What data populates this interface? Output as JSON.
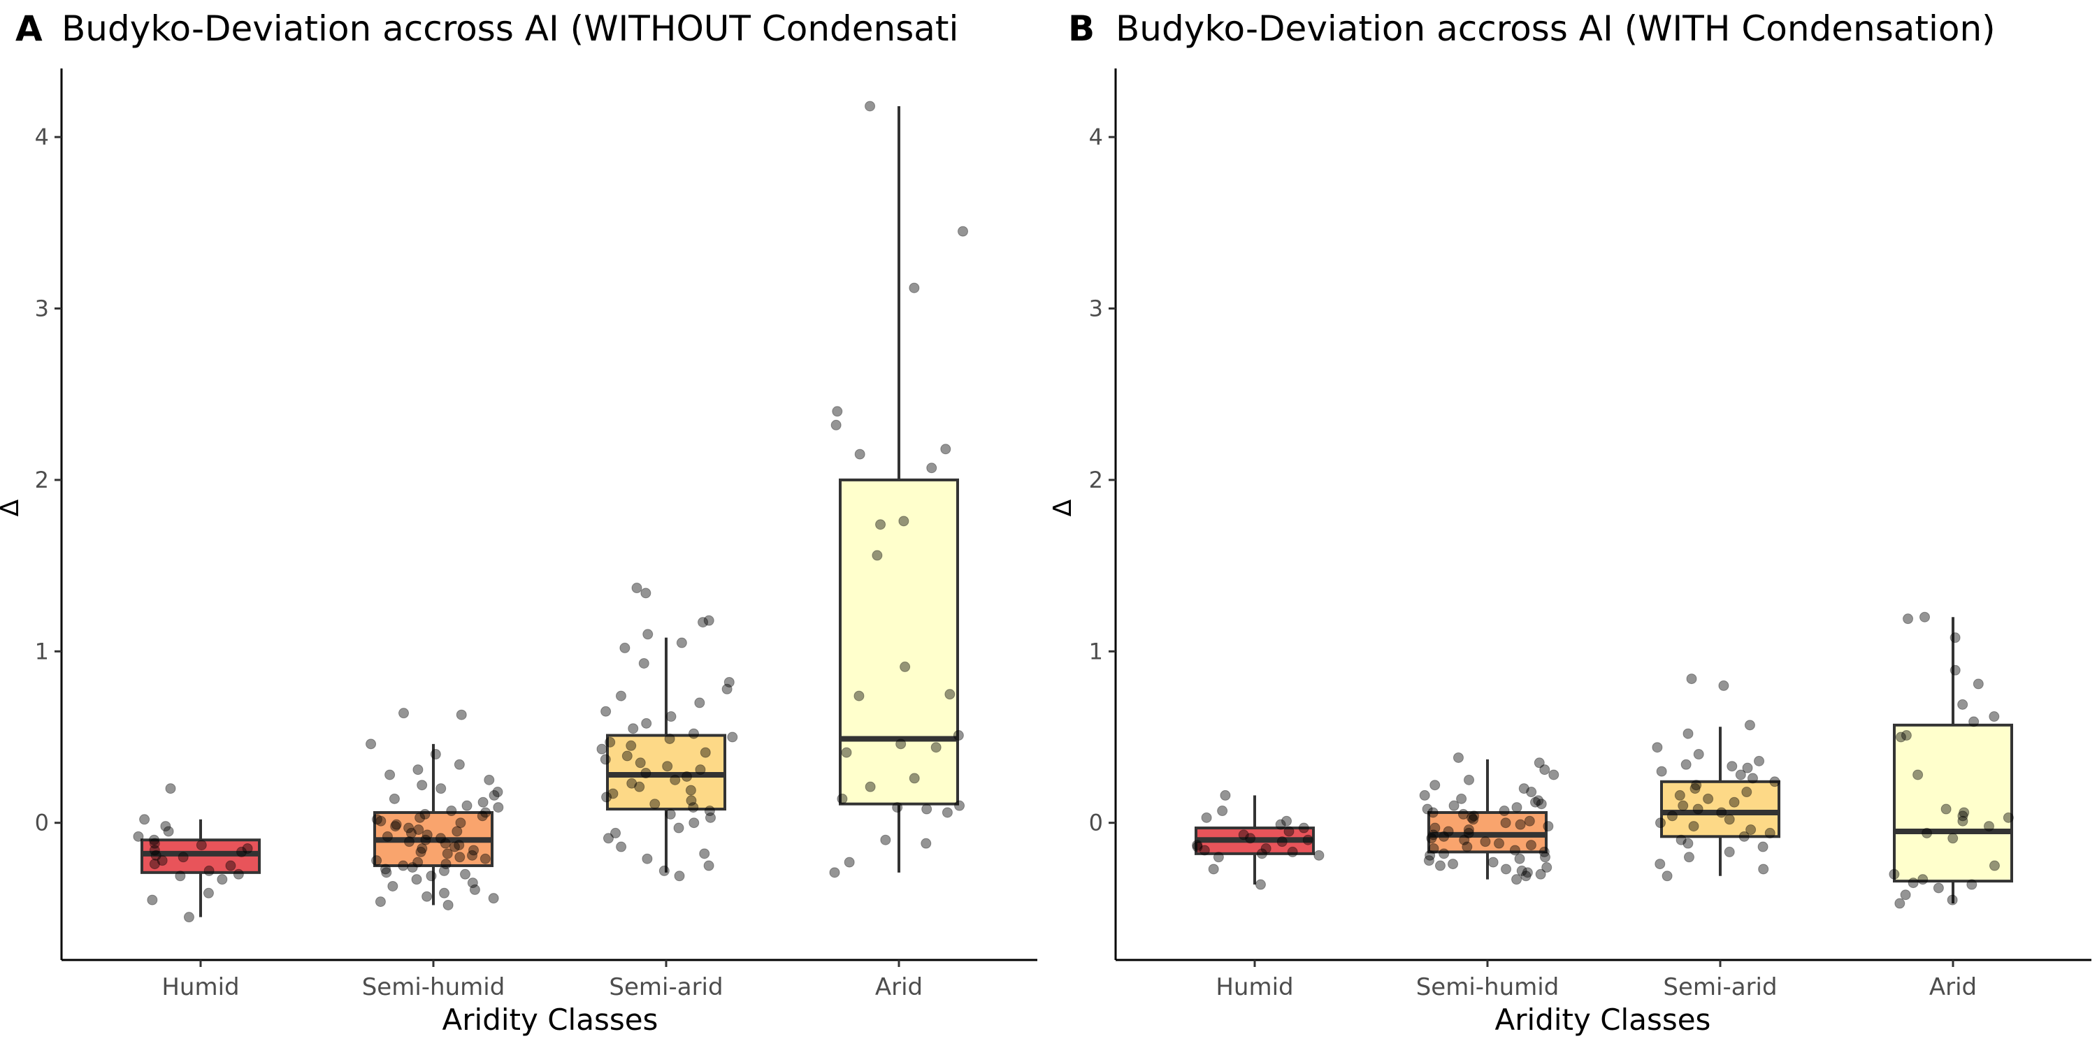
{
  "chart_data": [
    {
      "panel_letter": "A",
      "type": "boxplot",
      "title": "Budyko-Deviation accross AI (WITHOUT Condensati",
      "xlabel": "Aridity Classes",
      "ylabel": "Δ",
      "ylim": [
        -0.8,
        4.4
      ],
      "yticks": [
        0,
        1,
        2,
        3,
        4
      ],
      "grid": false,
      "categories": [
        "Humid",
        "Semi-humid",
        "Semi-arid",
        "Arid"
      ],
      "fill_colors": [
        "#e8545a",
        "#f9a46d",
        "#fdd987",
        "#ffffcc"
      ],
      "boxes": [
        {
          "category": "Humid",
          "whisker_low": -0.55,
          "q1": -0.29,
          "median": -0.18,
          "q3": -0.1,
          "whisker_high": 0.02
        },
        {
          "category": "Semi-humid",
          "whisker_low": -0.48,
          "q1": -0.25,
          "median": -0.1,
          "q3": 0.06,
          "whisker_high": 0.46
        },
        {
          "category": "Semi-arid",
          "whisker_low": -0.29,
          "q1": 0.08,
          "median": 0.28,
          "q3": 0.51,
          "whisker_high": 1.08
        },
        {
          "category": "Arid",
          "whisker_low": -0.29,
          "q1": 0.11,
          "median": 0.49,
          "q3": 2.0,
          "whisker_high": 4.18
        }
      ],
      "points": [
        {
          "category": "Humid",
          "values": [
            0.2,
            0.02,
            -0.02,
            -0.05,
            -0.08,
            -0.1,
            -0.12,
            -0.13,
            -0.15,
            -0.16,
            -0.17,
            -0.19,
            -0.2,
            -0.22,
            -0.24,
            -0.25,
            -0.28,
            -0.3,
            -0.31,
            -0.33,
            -0.41,
            -0.45,
            -0.55
          ]
        },
        {
          "category": "Semi-humid",
          "values": [
            0.64,
            0.63,
            0.46,
            0.4,
            0.34,
            0.31,
            0.28,
            0.25,
            0.22,
            0.2,
            0.18,
            0.16,
            0.14,
            0.12,
            0.1,
            0.09,
            0.07,
            0.06,
            0.05,
            0.04,
            0.03,
            0.02,
            0.01,
            0.0,
            -0.01,
            -0.02,
            -0.03,
            -0.04,
            -0.05,
            -0.06,
            -0.07,
            -0.08,
            -0.09,
            -0.1,
            -0.11,
            -0.12,
            -0.13,
            -0.14,
            -0.15,
            -0.16,
            -0.17,
            -0.18,
            -0.19,
            -0.2,
            -0.21,
            -0.22,
            -0.23,
            -0.24,
            -0.25,
            -0.26,
            -0.27,
            -0.28,
            -0.29,
            -0.3,
            -0.31,
            -0.33,
            -0.35,
            -0.37,
            -0.39,
            -0.41,
            -0.43,
            -0.44,
            -0.46,
            -0.48
          ]
        },
        {
          "category": "Semi-arid",
          "values": [
            1.37,
            1.34,
            1.18,
            1.17,
            1.1,
            1.05,
            1.02,
            0.93,
            0.82,
            0.78,
            0.74,
            0.7,
            0.65,
            0.62,
            0.58,
            0.55,
            0.52,
            0.5,
            0.49,
            0.47,
            0.45,
            0.43,
            0.41,
            0.39,
            0.37,
            0.35,
            0.33,
            0.31,
            0.29,
            0.27,
            0.25,
            0.23,
            0.21,
            0.19,
            0.17,
            0.15,
            0.13,
            0.11,
            0.09,
            0.07,
            0.05,
            0.03,
            0.0,
            -0.03,
            -0.06,
            -0.09,
            -0.14,
            -0.18,
            -0.21,
            -0.25,
            -0.28,
            -0.31
          ]
        },
        {
          "category": "Arid",
          "values": [
            4.18,
            3.45,
            3.12,
            2.4,
            2.32,
            2.18,
            2.15,
            2.07,
            1.76,
            1.74,
            1.56,
            0.91,
            0.75,
            0.74,
            0.51,
            0.46,
            0.44,
            0.41,
            0.26,
            0.21,
            0.14,
            0.1,
            0.09,
            0.08,
            0.06,
            -0.1,
            -0.12,
            -0.23,
            -0.29
          ]
        }
      ]
    },
    {
      "panel_letter": "B",
      "type": "boxplot",
      "title": "Budyko-Deviation accross AI (WITH Condensation)",
      "xlabel": "Aridity Classes",
      "ylabel": "Δ",
      "ylim": [
        -0.8,
        4.4
      ],
      "yticks": [
        0,
        1,
        2,
        3,
        4
      ],
      "grid": false,
      "categories": [
        "Humid",
        "Semi-humid",
        "Semi-arid",
        "Arid"
      ],
      "fill_colors": [
        "#e8545a",
        "#f9a46d",
        "#fdd987",
        "#ffffcc"
      ],
      "boxes": [
        {
          "category": "Humid",
          "whisker_low": -0.36,
          "q1": -0.18,
          "median": -0.1,
          "q3": -0.03,
          "whisker_high": 0.16
        },
        {
          "category": "Semi-humid",
          "whisker_low": -0.33,
          "q1": -0.17,
          "median": -0.07,
          "q3": 0.06,
          "whisker_high": 0.37
        },
        {
          "category": "Semi-arid",
          "whisker_low": -0.31,
          "q1": -0.08,
          "median": 0.06,
          "q3": 0.24,
          "whisker_high": 0.56
        },
        {
          "category": "Arid",
          "whisker_low": -0.47,
          "q1": -0.34,
          "median": -0.05,
          "q3": 0.57,
          "whisker_high": 1.2
        }
      ],
      "points": [
        {
          "category": "Humid",
          "values": [
            0.16,
            0.07,
            0.03,
            0.01,
            -0.01,
            -0.03,
            -0.05,
            -0.07,
            -0.09,
            -0.1,
            -0.11,
            -0.13,
            -0.14,
            -0.15,
            -0.16,
            -0.17,
            -0.18,
            -0.19,
            -0.2,
            -0.27,
            -0.36
          ]
        },
        {
          "category": "Semi-humid",
          "values": [
            0.38,
            0.35,
            0.31,
            0.28,
            0.25,
            0.22,
            0.2,
            0.18,
            0.16,
            0.14,
            0.13,
            0.12,
            0.11,
            0.1,
            0.09,
            0.08,
            0.07,
            0.06,
            0.05,
            0.04,
            0.03,
            0.02,
            0.01,
            0.0,
            -0.01,
            -0.02,
            -0.03,
            -0.04,
            -0.05,
            -0.06,
            -0.07,
            -0.08,
            -0.09,
            -0.1,
            -0.11,
            -0.12,
            -0.13,
            -0.14,
            -0.15,
            -0.16,
            -0.17,
            -0.18,
            -0.19,
            -0.2,
            -0.21,
            -0.22,
            -0.23,
            -0.24,
            -0.25,
            -0.26,
            -0.27,
            -0.28,
            -0.29,
            -0.3,
            -0.31,
            -0.33
          ]
        },
        {
          "category": "Semi-arid",
          "values": [
            0.84,
            0.8,
            0.57,
            0.52,
            0.44,
            0.4,
            0.36,
            0.34,
            0.33,
            0.32,
            0.3,
            0.28,
            0.26,
            0.24,
            0.22,
            0.2,
            0.18,
            0.16,
            0.14,
            0.12,
            0.1,
            0.08,
            0.06,
            0.04,
            0.02,
            0.0,
            -0.02,
            -0.04,
            -0.06,
            -0.08,
            -0.1,
            -0.12,
            -0.14,
            -0.17,
            -0.2,
            -0.24,
            -0.27,
            -0.31
          ]
        },
        {
          "category": "Arid",
          "values": [
            1.2,
            1.19,
            1.08,
            0.89,
            0.81,
            0.69,
            0.62,
            0.59,
            0.51,
            0.5,
            0.28,
            0.08,
            0.06,
            0.04,
            0.03,
            0.01,
            -0.02,
            -0.06,
            -0.09,
            -0.25,
            -0.3,
            -0.33,
            -0.35,
            -0.36,
            -0.38,
            -0.42,
            -0.45,
            -0.47
          ]
        }
      ]
    }
  ]
}
